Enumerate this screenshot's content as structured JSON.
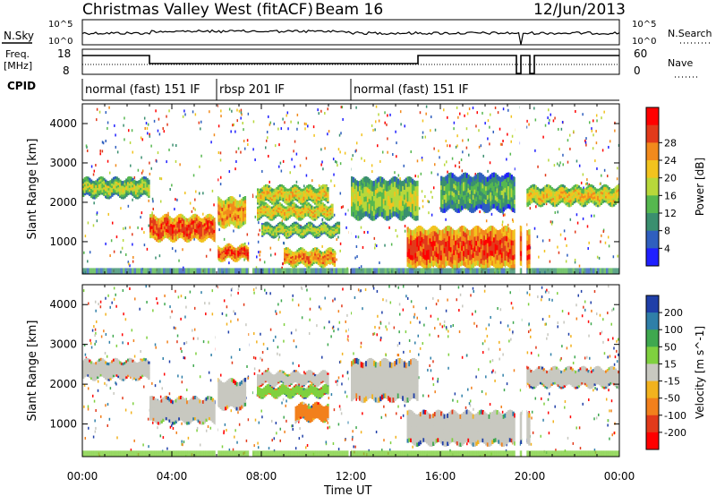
{
  "header": {
    "station": "Christmas Valley West (fitACF)",
    "beam": "Beam 16",
    "date": "12/Jun/2013"
  },
  "panels": {
    "noise": {
      "left_label": "N.Sky",
      "right_label": "N.Search",
      "left_ticks": [
        "10^5",
        "10^0"
      ],
      "right_ticks": [
        "10^5",
        "10^0"
      ]
    },
    "freq": {
      "left_label_1": "Freq.",
      "left_label_2": "[MHz]",
      "right_label": "Nave",
      "left_ticks": [
        "18",
        "8"
      ],
      "right_ticks": [
        "60",
        "0"
      ]
    },
    "cpid": {
      "label": "CPID",
      "segments": [
        {
          "text": "normal (fast) 151 IF",
          "start": 0,
          "end": 6
        },
        {
          "text": "rbsp 201 IF",
          "start": 6,
          "end": 12
        },
        {
          "text": "normal (fast) 151 IF",
          "start": 12,
          "end": 24
        }
      ]
    }
  },
  "chart_data": [
    {
      "type": "heatmap",
      "name": "power",
      "ylabel": "Slant Range [km]",
      "ylim": [
        180,
        4500
      ],
      "yticks": [
        1000,
        2000,
        3000,
        4000
      ],
      "colorbar": {
        "label": "Power [dB]",
        "ticks": [
          "4",
          "8",
          "12",
          "16",
          "20",
          "24",
          "28"
        ],
        "colors": [
          "#1f1fff",
          "#2f5fbf",
          "#3a8f6f",
          "#56b84f",
          "#b8d83a",
          "#f2c31e",
          "#f28a1c",
          "#e23a1a",
          "#ff0000"
        ]
      },
      "bands": [
        {
          "t0": 0.0,
          "t1": 3.0,
          "r0": 2150,
          "r1": 2600,
          "level": 4
        },
        {
          "t0": 3.0,
          "t1": 6.0,
          "r0": 1050,
          "r1": 1650,
          "level": 7
        },
        {
          "t0": 6.0,
          "t1": 7.3,
          "r0": 1400,
          "r1": 2100,
          "level": 6
        },
        {
          "t0": 6.0,
          "t1": 7.5,
          "r0": 550,
          "r1": 900,
          "level": 7
        },
        {
          "t0": 7.8,
          "t1": 11.0,
          "r0": 2000,
          "r1": 2400,
          "level": 5
        },
        {
          "t0": 7.8,
          "t1": 11.2,
          "r0": 1600,
          "r1": 1950,
          "level": 5
        },
        {
          "t0": 8.0,
          "t1": 11.5,
          "r0": 1150,
          "r1": 1450,
          "level": 4
        },
        {
          "t0": 9.0,
          "t1": 11.3,
          "r0": 400,
          "r1": 800,
          "level": 6
        },
        {
          "t0": 12.0,
          "t1": 15.0,
          "r0": 1600,
          "r1": 2600,
          "level": 4
        },
        {
          "t0": 14.5,
          "t1": 20.0,
          "r0": 350,
          "r1": 1350,
          "level": 7
        },
        {
          "t0": 16.0,
          "t1": 19.5,
          "r0": 1800,
          "r1": 2700,
          "level": 3
        },
        {
          "t0": 19.8,
          "t1": 24.0,
          "r0": 1950,
          "r1": 2400,
          "level": 5
        }
      ]
    },
    {
      "type": "heatmap",
      "name": "velocity",
      "xlabel": "Time UT",
      "ylabel": "Slant Range [km]",
      "ylim": [
        180,
        4500
      ],
      "yticks": [
        1000,
        2000,
        3000,
        4000
      ],
      "xticks": [
        "00:00",
        "04:00",
        "08:00",
        "12:00",
        "16:00",
        "20:00",
        "00:00"
      ],
      "colorbar": {
        "label": "Velocity [m s^-1]",
        "ticks": [
          "200",
          "100",
          "50",
          "15",
          "-15",
          "-50",
          "-100",
          "-200"
        ],
        "colors": [
          "#1f3fa8",
          "#2f7fa8",
          "#3fa84f",
          "#7fd03f",
          "#c8c8c0",
          "#f2b21e",
          "#f2801c",
          "#e23a1a",
          "#ff0000"
        ]
      },
      "bands": [
        {
          "t0": 0.0,
          "t1": 3.0,
          "r0": 2150,
          "r1": 2600,
          "level": 4
        },
        {
          "t0": 3.0,
          "t1": 6.0,
          "r0": 1050,
          "r1": 1650,
          "level": 4
        },
        {
          "t0": 6.0,
          "t1": 7.3,
          "r0": 1400,
          "r1": 2100,
          "level": 4
        },
        {
          "t0": 7.8,
          "t1": 11.0,
          "r0": 1700,
          "r1": 1950,
          "level": 3
        },
        {
          "t0": 7.8,
          "t1": 11.0,
          "r0": 2000,
          "r1": 2300,
          "level": 4
        },
        {
          "t0": 9.5,
          "t1": 11.0,
          "r0": 1100,
          "r1": 1500,
          "level": 6
        },
        {
          "t0": 12.0,
          "t1": 15.0,
          "r0": 1600,
          "r1": 2600,
          "level": 4
        },
        {
          "t0": 14.5,
          "t1": 20.0,
          "r0": 500,
          "r1": 1300,
          "level": 4
        },
        {
          "t0": 19.8,
          "t1": 24.0,
          "r0": 1950,
          "r1": 2400,
          "level": 4
        }
      ]
    }
  ]
}
